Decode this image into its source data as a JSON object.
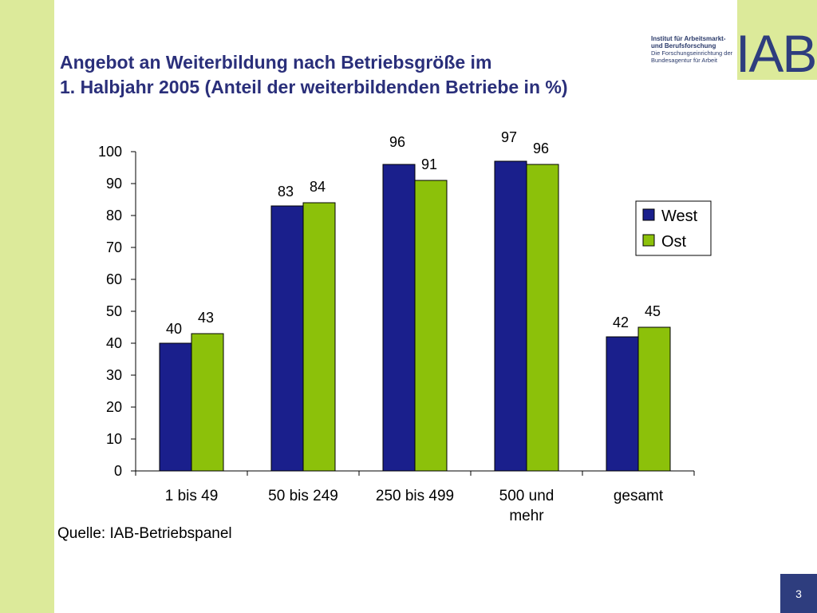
{
  "title_line1": "Angebot an Weiterbildung nach Betriebsgröße im",
  "title_line2": "1. Halbjahr 2005 (Anteil der weiterbildenden Betriebe in %)",
  "logo": {
    "line1": "Institut für Arbeitsmarkt-",
    "line2": "und Berufsforschung",
    "line3": "Die Forschungseinrichtung der",
    "line4": "Bundesagentur für Arbeit",
    "wordmark": "IAB"
  },
  "source": "Quelle: IAB-Betriebspanel",
  "page_number": "3",
  "colors": {
    "west": "#1a1f8c",
    "ost": "#8cc10a",
    "band": "#dcea9a",
    "title": "#2a2f7a"
  },
  "chart_data": {
    "type": "bar",
    "categories": [
      [
        "1 bis 49"
      ],
      [
        "50 bis 249"
      ],
      [
        "250 bis 499"
      ],
      [
        "500 und",
        "mehr"
      ],
      [
        "gesamt"
      ]
    ],
    "series": [
      {
        "name": "West",
        "values": [
          40,
          83,
          96,
          97,
          42
        ]
      },
      {
        "name": "Ost",
        "values": [
          43,
          84,
          91,
          96,
          45
        ]
      }
    ],
    "ylim": [
      0,
      100
    ],
    "yticks": [
      0,
      10,
      20,
      30,
      40,
      50,
      60,
      70,
      80,
      90,
      100
    ],
    "legend_position": "right",
    "grid": false
  }
}
